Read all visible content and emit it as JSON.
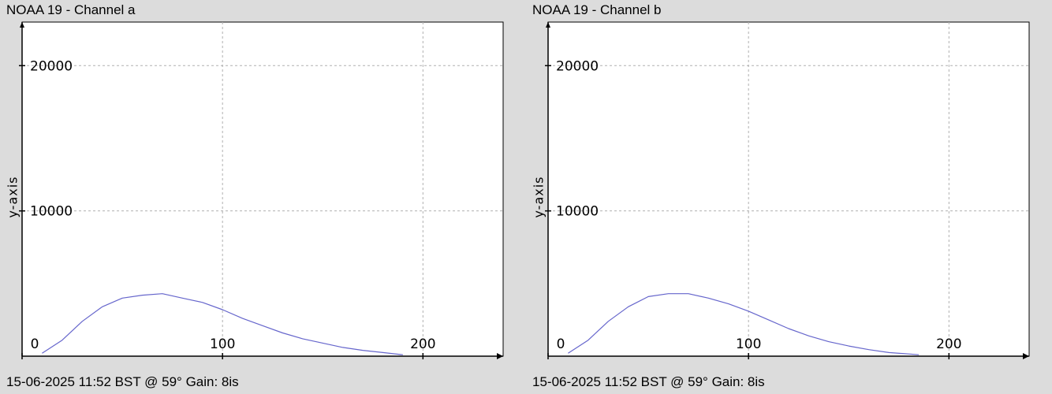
{
  "chart_data": [
    {
      "type": "line",
      "title": "NOAA 19 - Channel a",
      "footer": "15-06-2025 11:52 BST @ 59° Gain: 8is",
      "ylabel": "y-axis",
      "xlabel": "",
      "xlim": [
        0,
        240
      ],
      "ylim": [
        0,
        23000
      ],
      "xticks": [
        0,
        100,
        200
      ],
      "yticks": [
        10000,
        20000
      ],
      "xtick_labels": [
        "0",
        "100",
        "200"
      ],
      "ytick_labels": [
        "10000",
        "20000"
      ],
      "grid": true,
      "line_color": "#6666cc",
      "series": [
        {
          "x": [
            10,
            20,
            30,
            40,
            50,
            60,
            70,
            80,
            90,
            100,
            110,
            120,
            130,
            140,
            150,
            160,
            170,
            180,
            190
          ],
          "values": [
            200,
            1100,
            2400,
            3400,
            4000,
            4200,
            4300,
            4000,
            3700,
            3200,
            2600,
            2100,
            1600,
            1200,
            900,
            600,
            400,
            250,
            100
          ]
        }
      ]
    },
    {
      "type": "line",
      "title": "NOAA 19 - Channel b",
      "footer": "15-06-2025 11:52 BST @ 59° Gain: 8is",
      "ylabel": "y-axis",
      "xlabel": "",
      "xlim": [
        0,
        240
      ],
      "ylim": [
        0,
        23000
      ],
      "xticks": [
        0,
        100,
        200
      ],
      "yticks": [
        10000,
        20000
      ],
      "xtick_labels": [
        "0",
        "100",
        "200"
      ],
      "ytick_labels": [
        "10000",
        "20000"
      ],
      "grid": true,
      "line_color": "#6666cc",
      "series": [
        {
          "x": [
            10,
            20,
            30,
            40,
            50,
            60,
            70,
            80,
            90,
            100,
            110,
            120,
            130,
            140,
            150,
            160,
            170,
            180,
            185
          ],
          "values": [
            200,
            1100,
            2400,
            3400,
            4100,
            4300,
            4300,
            4000,
            3600,
            3100,
            2500,
            1900,
            1400,
            1000,
            700,
            450,
            250,
            150,
            100
          ]
        }
      ]
    }
  ]
}
